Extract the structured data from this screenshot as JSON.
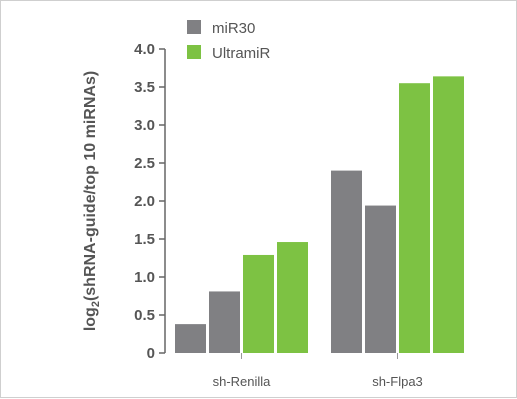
{
  "chart_data": {
    "type": "bar",
    "categories": [
      "sh-Renilla",
      "sh-Flpa3"
    ],
    "series": [
      {
        "name": "miR30",
        "color": "#808083",
        "values": [
          [
            0.38,
            0.81
          ],
          [
            2.4,
            1.94
          ]
        ]
      },
      {
        "name": "UltramiR",
        "color": "#7dc243",
        "values": [
          [
            1.29,
            1.46
          ],
          [
            3.55,
            3.64
          ]
        ]
      }
    ],
    "ylabel_main": "log",
    "ylabel_sub": "2",
    "ylabel_rest": "(shRNA-guide/top 10 miRNAs)",
    "ylim": [
      0,
      4.0
    ],
    "yticks": [
      "0",
      "0.5",
      "1.0",
      "1.5",
      "2.0",
      "2.5",
      "3.0",
      "3.5",
      "4.0"
    ],
    "legend_position": "top-left",
    "grid": false
  }
}
